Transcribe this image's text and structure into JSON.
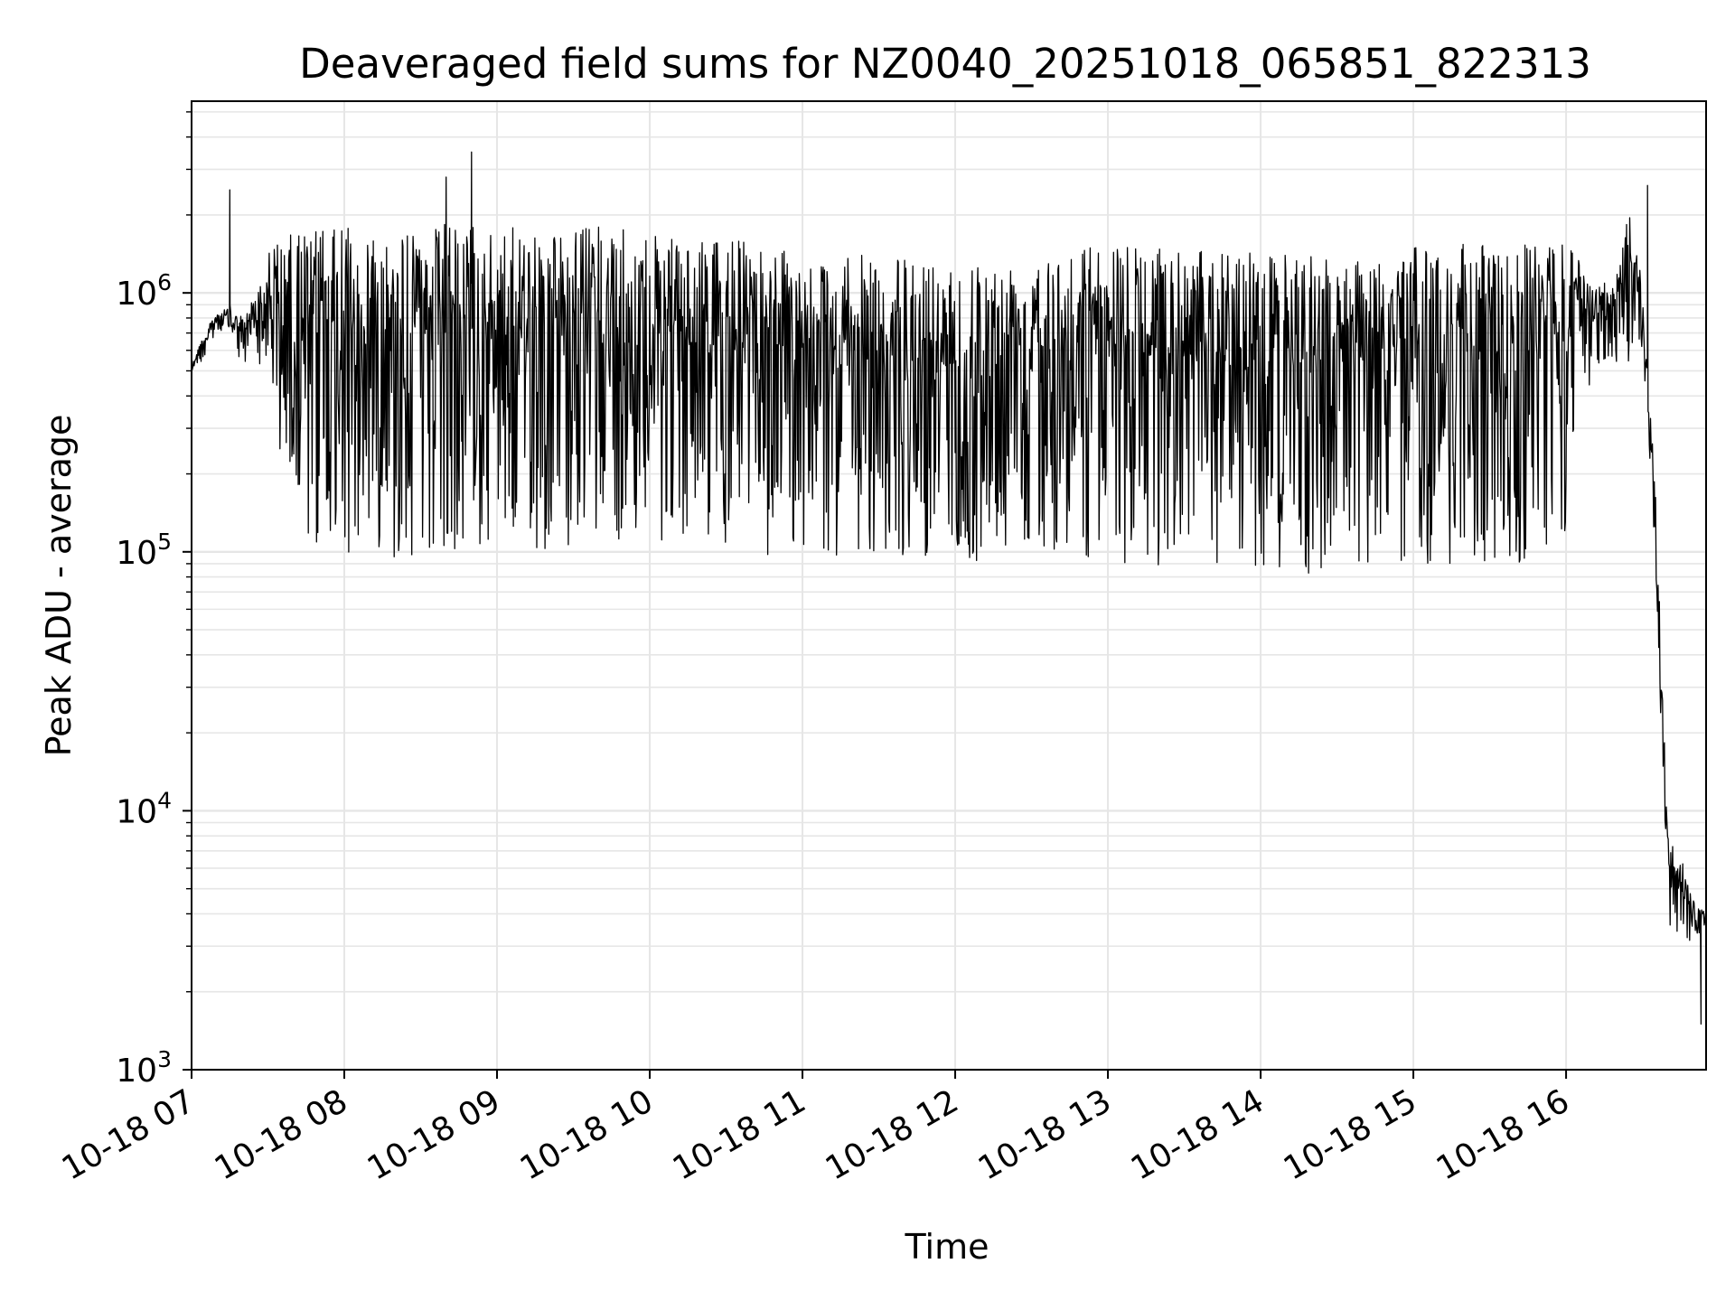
{
  "chart_data": {
    "type": "line",
    "title": "Deaveraged field sums for NZ0040_20251018_065851_822313",
    "xlabel": "Time",
    "ylabel": "Peak ADU - average",
    "yscale": "log",
    "ylim": [
      1000,
      5500000
    ],
    "xlim": [
      "2025-10-18 07:00",
      "2025-10-18 16:55"
    ],
    "grid": true,
    "line_color": "#000000",
    "grid_color": "#e6e6e6",
    "x_ticks": [
      "10-18 07",
      "10-18 08",
      "10-18 09",
      "10-18 10",
      "10-18 11",
      "10-18 12",
      "10-18 13",
      "10-18 14",
      "10-18 15",
      "10-18 16"
    ],
    "y_ticks": [
      {
        "value": 1000,
        "base": "10",
        "exp": "3"
      },
      {
        "value": 10000,
        "base": "10",
        "exp": "4"
      },
      {
        "value": 100000,
        "base": "10",
        "exp": "5"
      },
      {
        "value": 1000000,
        "base": "10",
        "exp": "6"
      }
    ],
    "series": [
      {
        "x": [
          "2025-10-18 07:00",
          "2025-10-18 07:05",
          "2025-10-18 07:10",
          "2025-10-18 07:15",
          "2025-10-18 07:20",
          "2025-10-18 07:25",
          "2025-10-18 07:30",
          "2025-10-18 07:35",
          "2025-10-18 07:40",
          "2025-10-18 07:45",
          "2025-10-18 07:50",
          "2025-10-18 07:55",
          "2025-10-18 08:00",
          "2025-10-18 08:05",
          "2025-10-18 08:10",
          "2025-10-18 08:15",
          "2025-10-18 08:20",
          "2025-10-18 08:25",
          "2025-10-18 08:30",
          "2025-10-18 08:35",
          "2025-10-18 08:40",
          "2025-10-18 08:45",
          "2025-10-18 08:50",
          "2025-10-18 08:55",
          "2025-10-18 09:00",
          "2025-10-18 09:05",
          "2025-10-18 09:10",
          "2025-10-18 09:15",
          "2025-10-18 09:20",
          "2025-10-18 09:25",
          "2025-10-18 09:30",
          "2025-10-18 09:35",
          "2025-10-18 09:40",
          "2025-10-18 09:45",
          "2025-10-18 09:50",
          "2025-10-18 09:55",
          "2025-10-18 10:00",
          "2025-10-18 10:05",
          "2025-10-18 10:10",
          "2025-10-18 10:15",
          "2025-10-18 10:20",
          "2025-10-18 10:25",
          "2025-10-18 10:30",
          "2025-10-18 10:35",
          "2025-10-18 10:40",
          "2025-10-18 10:45",
          "2025-10-18 10:50",
          "2025-10-18 10:55",
          "2025-10-18 11:00",
          "2025-10-18 11:05",
          "2025-10-18 11:10",
          "2025-10-18 11:15",
          "2025-10-18 11:20",
          "2025-10-18 11:25",
          "2025-10-18 11:30",
          "2025-10-18 11:35",
          "2025-10-18 11:40",
          "2025-10-18 11:45",
          "2025-10-18 11:50",
          "2025-10-18 11:55",
          "2025-10-18 12:00",
          "2025-10-18 12:05",
          "2025-10-18 12:10",
          "2025-10-18 12:15",
          "2025-10-18 12:20",
          "2025-10-18 12:25",
          "2025-10-18 12:30",
          "2025-10-18 12:35",
          "2025-10-18 12:40",
          "2025-10-18 12:45",
          "2025-10-18 12:50",
          "2025-10-18 12:55",
          "2025-10-18 13:00",
          "2025-10-18 13:05",
          "2025-10-18 13:10",
          "2025-10-18 13:15",
          "2025-10-18 13:20",
          "2025-10-18 13:25",
          "2025-10-18 13:30",
          "2025-10-18 13:35",
          "2025-10-18 13:40",
          "2025-10-18 13:45",
          "2025-10-18 13:50",
          "2025-10-18 13:55",
          "2025-10-18 14:00",
          "2025-10-18 14:05",
          "2025-10-18 14:10",
          "2025-10-18 14:15",
          "2025-10-18 14:20",
          "2025-10-18 14:25",
          "2025-10-18 14:30",
          "2025-10-18 14:35",
          "2025-10-18 14:40",
          "2025-10-18 14:45",
          "2025-10-18 14:50",
          "2025-10-18 14:55",
          "2025-10-18 15:00",
          "2025-10-18 15:05",
          "2025-10-18 15:10",
          "2025-10-18 15:15",
          "2025-10-18 15:20",
          "2025-10-18 15:25",
          "2025-10-18 15:30",
          "2025-10-18 15:35",
          "2025-10-18 15:40",
          "2025-10-18 15:45",
          "2025-10-18 15:50",
          "2025-10-18 15:55",
          "2025-10-18 16:00",
          "2025-10-18 16:05",
          "2025-10-18 16:10",
          "2025-10-18 16:15",
          "2025-10-18 16:20",
          "2025-10-18 16:25",
          "2025-10-18 16:30",
          "2025-10-18 16:35",
          "2025-10-18 16:40",
          "2025-10-18 16:45",
          "2025-10-18 16:50",
          "2025-10-18 16:55"
        ],
        "upper": [
          550000,
          700000,
          850000,
          900000,
          800000,
          1000000,
          1500000,
          1600000,
          1700000,
          1800000,
          1800000,
          1750000,
          1800000,
          1750000,
          1800000,
          1750000,
          1800000,
          1700000,
          1750000,
          1800000,
          1900000,
          1800000,
          1900000,
          1700000,
          1750000,
          1800000,
          1750000,
          1850000,
          1800000,
          1700000,
          1750000,
          1800000,
          1850000,
          1800000,
          1750000,
          1700000,
          1700000,
          1650000,
          1600000,
          1650000,
          1600000,
          1550000,
          1600000,
          1650000,
          1600000,
          1550000,
          1500000,
          1450000,
          1400000,
          1400000,
          1350000,
          1350000,
          1400000,
          1400000,
          1350000,
          1400000,
          1350000,
          1350000,
          1400000,
          1350000,
          1350000,
          1400000,
          1350000,
          1300000,
          1350000,
          1400000,
          1450000,
          1450000,
          1500000,
          1500000,
          1550000,
          1600000,
          1550000,
          1550000,
          1500000,
          1500000,
          1500000,
          1500000,
          1450000,
          1500000,
          1500000,
          1450000,
          1450000,
          1500000,
          1450000,
          1450000,
          1400000,
          1400000,
          1450000,
          1400000,
          1450000,
          1400000,
          1400000,
          1450000,
          1500000,
          1450000,
          1500000,
          1500000,
          1550000,
          1550000,
          1600000,
          1550000,
          1600000,
          1550000,
          1600000,
          1600000,
          1550000,
          1500000,
          1550000,
          1500000,
          1050000,
          1100000,
          1200000,
          2200000,
          1100000,
          180000,
          8000,
          7000,
          4500,
          4000
        ],
        "lower": [
          480000,
          560000,
          700000,
          680000,
          500000,
          600000,
          420000,
          180000,
          150000,
          110000,
          100000,
          110000,
          100000,
          95000,
          100000,
          105000,
          90000,
          95000,
          100000,
          92000,
          80000,
          88000,
          85000,
          100000,
          110000,
          95000,
          90000,
          100000,
          95000,
          100000,
          110000,
          115000,
          120000,
          100000,
          110000,
          105000,
          120000,
          110000,
          105000,
          120000,
          110000,
          105000,
          100000,
          110000,
          105000,
          95000,
          90000,
          88000,
          100000,
          92000,
          95000,
          90000,
          85000,
          88000,
          90000,
          92000,
          95000,
          100000,
          95000,
          90000,
          88000,
          85000,
          90000,
          92000,
          95000,
          100000,
          110000,
          105000,
          100000,
          95000,
          100000,
          90000,
          88000,
          85000,
          82000,
          80000,
          85000,
          88000,
          90000,
          85000,
          80000,
          75000,
          80000,
          78000,
          80000,
          82000,
          85000,
          80000,
          78000,
          82000,
          85000,
          88000,
          90000,
          85000,
          88000,
          85000,
          90000,
          88000,
          92000,
          85000,
          88000,
          90000,
          88000,
          85000,
          86000,
          90000,
          95000,
          100000,
          105000,
          350000,
          450000,
          480000,
          500000,
          550000,
          600000,
          100000,
          3500,
          2500,
          3200,
          3500
        ],
        "spikes": [
          {
            "x": "2025-10-18 07:15",
            "y": 2500000
          },
          {
            "x": "2025-10-18 08:40",
            "y": 2800000
          },
          {
            "x": "2025-10-18 08:50",
            "y": 3500000
          },
          {
            "x": "2025-10-18 16:32",
            "y": 2600000
          },
          {
            "x": "2025-10-18 16:53",
            "y": 1500
          }
        ]
      }
    ]
  }
}
